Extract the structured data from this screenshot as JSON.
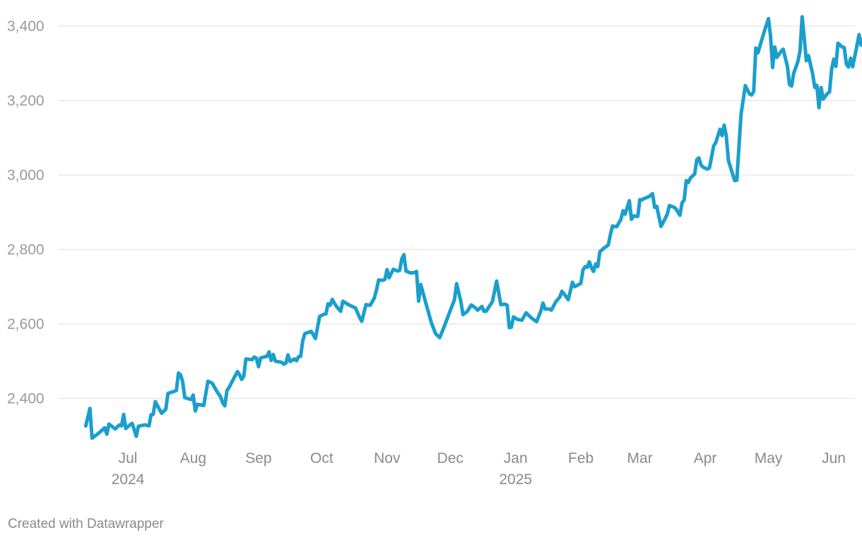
{
  "chart_data": {
    "type": "line",
    "title": "",
    "xlabel": "",
    "ylabel": "",
    "ylim": [
      2280,
      3440
    ],
    "yticks": [
      2400,
      2600,
      2800,
      3000,
      3200,
      3400
    ],
    "ytick_labels": [
      "2,400",
      "2,600",
      "2,800",
      "3,000",
      "3,200",
      "3,400"
    ],
    "xtick_dates": [
      "2024-07-01",
      "2024-08-01",
      "2024-09-01",
      "2024-10-01",
      "2024-11-01",
      "2024-12-01",
      "2025-01-01",
      "2025-02-01",
      "2025-03-01",
      "2025-04-01",
      "2025-05-01",
      "2025-06-01"
    ],
    "xtick_labels": [
      "Jul",
      "Aug",
      "Sep",
      "Oct",
      "Nov",
      "Dec",
      "Jan",
      "Feb",
      "Mar",
      "Apr",
      "May",
      "Jun"
    ],
    "year_labels": [
      {
        "date": "2024-07-01",
        "label": "2024"
      },
      {
        "date": "2025-01-01",
        "label": "2025"
      }
    ],
    "grid": true,
    "line_color": "#1a9fcd",
    "series": [
      {
        "values": [
          [
            "2024-06-11",
            2326
          ],
          [
            "2024-06-13",
            2373
          ],
          [
            "2024-06-14",
            2293
          ],
          [
            "2024-06-17",
            2306
          ],
          [
            "2024-06-20",
            2321
          ],
          [
            "2024-06-21",
            2304
          ],
          [
            "2024-06-22",
            2331
          ],
          [
            "2024-06-25",
            2318
          ],
          [
            "2024-06-27",
            2329
          ],
          [
            "2024-06-28",
            2326
          ],
          [
            "2024-06-29",
            2357
          ],
          [
            "2024-06-30",
            2319
          ],
          [
            "2024-07-02",
            2329
          ],
          [
            "2024-07-03",
            2333
          ],
          [
            "2024-07-05",
            2298
          ],
          [
            "2024-07-06",
            2325
          ],
          [
            "2024-07-09",
            2329
          ],
          [
            "2024-07-11",
            2326
          ],
          [
            "2024-07-12",
            2356
          ],
          [
            "2024-07-13",
            2357
          ],
          [
            "2024-07-14",
            2391
          ],
          [
            "2024-07-15",
            2381
          ],
          [
            "2024-07-17",
            2360
          ],
          [
            "2024-07-19",
            2371
          ],
          [
            "2024-07-20",
            2413
          ],
          [
            "2024-07-22",
            2417
          ],
          [
            "2024-07-24",
            2421
          ],
          [
            "2024-07-25",
            2468
          ],
          [
            "2024-07-26",
            2463
          ],
          [
            "2024-07-27",
            2445
          ],
          [
            "2024-07-28",
            2402
          ],
          [
            "2024-07-31",
            2397
          ],
          [
            "2024-08-01",
            2409
          ],
          [
            "2024-08-02",
            2366
          ],
          [
            "2024-08-03",
            2384
          ],
          [
            "2024-08-06",
            2381
          ],
          [
            "2024-08-08",
            2446
          ],
          [
            "2024-08-10",
            2441
          ],
          [
            "2024-08-12",
            2421
          ],
          [
            "2024-08-14",
            2404
          ],
          [
            "2024-08-15",
            2388
          ],
          [
            "2024-08-16",
            2380
          ],
          [
            "2024-08-17",
            2421
          ],
          [
            "2024-08-18",
            2429
          ],
          [
            "2024-08-20",
            2451
          ],
          [
            "2024-08-22",
            2472
          ],
          [
            "2024-08-23",
            2463
          ],
          [
            "2024-08-24",
            2451
          ],
          [
            "2024-08-25",
            2459
          ],
          [
            "2024-08-26",
            2506
          ],
          [
            "2024-08-29",
            2504
          ],
          [
            "2024-08-30",
            2511
          ],
          [
            "2024-08-31",
            2508
          ],
          [
            "2024-09-01",
            2485
          ],
          [
            "2024-09-02",
            2509
          ],
          [
            "2024-09-05",
            2513
          ],
          [
            "2024-09-06",
            2525
          ],
          [
            "2024-09-07",
            2502
          ],
          [
            "2024-09-08",
            2518
          ],
          [
            "2024-09-09",
            2500
          ],
          [
            "2024-09-12",
            2497
          ],
          [
            "2024-09-13",
            2492
          ],
          [
            "2024-09-14",
            2495
          ],
          [
            "2024-09-15",
            2517
          ],
          [
            "2024-09-16",
            2499
          ],
          [
            "2024-09-18",
            2506
          ],
          [
            "2024-09-19",
            2501
          ],
          [
            "2024-09-20",
            2512
          ],
          [
            "2024-09-21",
            2513
          ],
          [
            "2024-09-22",
            2555
          ],
          [
            "2024-09-23",
            2574
          ],
          [
            "2024-09-25",
            2578
          ],
          [
            "2024-09-26",
            2580
          ],
          [
            "2024-09-27",
            2571
          ],
          [
            "2024-09-28",
            2561
          ],
          [
            "2024-09-30",
            2620
          ],
          [
            "2024-10-02",
            2626
          ],
          [
            "2024-10-03",
            2627
          ],
          [
            "2024-10-04",
            2654
          ],
          [
            "2024-10-05",
            2650
          ],
          [
            "2024-10-06",
            2666
          ],
          [
            "2024-10-07",
            2656
          ],
          [
            "2024-10-08",
            2647
          ],
          [
            "2024-10-10",
            2634
          ],
          [
            "2024-10-11",
            2661
          ],
          [
            "2024-10-13",
            2654
          ],
          [
            "2024-10-15",
            2648
          ],
          [
            "2024-10-17",
            2643
          ],
          [
            "2024-10-19",
            2617
          ],
          [
            "2024-10-20",
            2607
          ],
          [
            "2024-10-22",
            2652
          ],
          [
            "2024-10-24",
            2650
          ],
          [
            "2024-10-25",
            2660
          ],
          [
            "2024-10-26",
            2670
          ],
          [
            "2024-10-27",
            2692
          ],
          [
            "2024-10-28",
            2718
          ],
          [
            "2024-10-30",
            2717
          ],
          [
            "2024-10-31",
            2720
          ],
          [
            "2024-11-01",
            2746
          ],
          [
            "2024-11-02",
            2724
          ],
          [
            "2024-11-03",
            2736
          ],
          [
            "2024-11-04",
            2747
          ],
          [
            "2024-11-06",
            2742
          ],
          [
            "2024-11-07",
            2744
          ],
          [
            "2024-11-08",
            2775
          ],
          [
            "2024-11-09",
            2786
          ],
          [
            "2024-11-10",
            2742
          ],
          [
            "2024-11-12",
            2737
          ],
          [
            "2024-11-14",
            2738
          ],
          [
            "2024-11-15",
            2741
          ],
          [
            "2024-11-16",
            2661
          ],
          [
            "2024-11-17",
            2706
          ],
          [
            "2024-11-19",
            2664
          ],
          [
            "2024-11-22",
            2604
          ],
          [
            "2024-11-24",
            2574
          ],
          [
            "2024-11-26",
            2563
          ],
          [
            "2024-11-28",
            2591
          ],
          [
            "2024-12-01",
            2636
          ],
          [
            "2024-12-03",
            2665
          ],
          [
            "2024-12-04",
            2708
          ],
          [
            "2024-12-06",
            2661
          ],
          [
            "2024-12-07",
            2625
          ],
          [
            "2024-12-09",
            2633
          ],
          [
            "2024-12-11",
            2651
          ],
          [
            "2024-12-13",
            2643
          ],
          [
            "2024-12-14",
            2637
          ],
          [
            "2024-12-16",
            2647
          ],
          [
            "2024-12-17",
            2634
          ],
          [
            "2024-12-18",
            2634
          ],
          [
            "2024-12-21",
            2660
          ],
          [
            "2024-12-23",
            2715
          ],
          [
            "2024-12-25",
            2652
          ],
          [
            "2024-12-27",
            2653
          ],
          [
            "2024-12-28",
            2650
          ],
          [
            "2024-12-29",
            2590
          ],
          [
            "2024-12-30",
            2591
          ],
          [
            "2024-12-31",
            2619
          ],
          [
            "2025-01-02",
            2612
          ],
          [
            "2025-01-04",
            2610
          ],
          [
            "2025-01-06",
            2630
          ],
          [
            "2025-01-08",
            2619
          ],
          [
            "2025-01-09",
            2614
          ],
          [
            "2025-01-11",
            2606
          ],
          [
            "2025-01-13",
            2635
          ],
          [
            "2025-01-14",
            2656
          ],
          [
            "2025-01-15",
            2640
          ],
          [
            "2025-01-17",
            2640
          ],
          [
            "2025-01-18",
            2637
          ],
          [
            "2025-01-20",
            2659
          ],
          [
            "2025-01-22",
            2672
          ],
          [
            "2025-01-23",
            2688
          ],
          [
            "2025-01-25",
            2673
          ],
          [
            "2025-01-26",
            2665
          ],
          [
            "2025-01-28",
            2712
          ],
          [
            "2025-01-29",
            2700
          ],
          [
            "2025-02-01",
            2709
          ],
          [
            "2025-02-02",
            2745
          ],
          [
            "2025-02-03",
            2754
          ],
          [
            "2025-02-04",
            2752
          ],
          [
            "2025-02-05",
            2767
          ],
          [
            "2025-02-06",
            2751
          ],
          [
            "2025-02-07",
            2741
          ],
          [
            "2025-02-08",
            2761
          ],
          [
            "2025-02-09",
            2754
          ],
          [
            "2025-02-10",
            2794
          ],
          [
            "2025-02-12",
            2804
          ],
          [
            "2025-02-14",
            2812
          ],
          [
            "2025-02-15",
            2840
          ],
          [
            "2025-02-16",
            2863
          ],
          [
            "2025-02-18",
            2861
          ],
          [
            "2025-02-20",
            2881
          ],
          [
            "2025-02-21",
            2904
          ],
          [
            "2025-02-22",
            2895
          ],
          [
            "2025-02-24",
            2931
          ],
          [
            "2025-02-25",
            2881
          ],
          [
            "2025-02-26",
            2890
          ],
          [
            "2025-02-28",
            2889
          ],
          [
            "2025-03-01",
            2934
          ],
          [
            "2025-03-02",
            2933
          ],
          [
            "2025-03-03",
            2937
          ],
          [
            "2025-03-05",
            2941
          ],
          [
            "2025-03-06",
            2945
          ],
          [
            "2025-03-07",
            2950
          ],
          [
            "2025-03-08",
            2913
          ],
          [
            "2025-03-09",
            2916
          ],
          [
            "2025-03-11",
            2862
          ],
          [
            "2025-03-13",
            2883
          ],
          [
            "2025-03-14",
            2895
          ],
          [
            "2025-03-15",
            2918
          ],
          [
            "2025-03-17",
            2914
          ],
          [
            "2025-03-18",
            2910
          ],
          [
            "2025-03-20",
            2892
          ],
          [
            "2025-03-21",
            2925
          ],
          [
            "2025-03-22",
            2933
          ],
          [
            "2025-03-23",
            2985
          ],
          [
            "2025-03-24",
            2980
          ],
          [
            "2025-03-25",
            2992
          ],
          [
            "2025-03-27",
            3003
          ],
          [
            "2025-03-28",
            3041
          ],
          [
            "2025-03-29",
            3046
          ],
          [
            "2025-03-30",
            3027
          ],
          [
            "2025-03-31",
            3021
          ],
          [
            "2025-04-02",
            3016
          ],
          [
            "2025-04-03",
            3019
          ],
          [
            "2025-04-05",
            3078
          ],
          [
            "2025-04-06",
            3087
          ],
          [
            "2025-04-08",
            3123
          ],
          [
            "2025-04-09",
            3106
          ],
          [
            "2025-04-10",
            3134
          ],
          [
            "2025-04-11",
            3105
          ],
          [
            "2025-04-12",
            3039
          ],
          [
            "2025-04-15",
            2985
          ],
          [
            "2025-04-16",
            2986
          ],
          [
            "2025-04-18",
            3163
          ],
          [
            "2025-04-20",
            3240
          ],
          [
            "2025-04-22",
            3218
          ],
          [
            "2025-04-23",
            3215
          ],
          [
            "2025-04-24",
            3224
          ],
          [
            "2025-04-25",
            3341
          ],
          [
            "2025-04-26",
            3328
          ],
          [
            "2025-04-29",
            3385
          ],
          [
            "2025-05-01",
            3420
          ],
          [
            "2025-05-02",
            3374
          ],
          [
            "2025-05-03",
            3289
          ],
          [
            "2025-05-04",
            3344
          ],
          [
            "2025-05-05",
            3316
          ],
          [
            "2025-05-07",
            3332
          ],
          [
            "2025-05-08",
            3338
          ],
          [
            "2025-05-10",
            3292
          ],
          [
            "2025-05-11",
            3243
          ],
          [
            "2025-05-12",
            3239
          ],
          [
            "2025-05-13",
            3273
          ],
          [
            "2025-05-15",
            3305
          ],
          [
            "2025-05-16",
            3333
          ],
          [
            "2025-05-17",
            3425
          ],
          [
            "2025-05-18",
            3368
          ],
          [
            "2025-05-19",
            3307
          ],
          [
            "2025-05-20",
            3321
          ],
          [
            "2025-05-22",
            3271
          ],
          [
            "2025-05-23",
            3235
          ],
          [
            "2025-05-24",
            3241
          ],
          [
            "2025-05-25",
            3181
          ],
          [
            "2025-05-26",
            3235
          ],
          [
            "2025-05-27",
            3204
          ],
          [
            "2025-05-29",
            3219
          ],
          [
            "2025-05-30",
            3223
          ],
          [
            "2025-05-31",
            3284
          ],
          [
            "2025-06-01",
            3311
          ],
          [
            "2025-06-02",
            3292
          ],
          [
            "2025-06-03",
            3354
          ],
          [
            "2025-06-05",
            3344
          ],
          [
            "2025-06-06",
            3342
          ],
          [
            "2025-06-07",
            3298
          ],
          [
            "2025-06-08",
            3290
          ],
          [
            "2025-06-09",
            3314
          ],
          [
            "2025-06-10",
            3291
          ],
          [
            "2025-06-12",
            3347
          ],
          [
            "2025-06-13",
            3377
          ],
          [
            "2025-06-14",
            3349
          ],
          [
            "2025-06-15",
            3364
          ]
        ]
      }
    ]
  },
  "footer": {
    "credit": "Created with Datawrapper"
  }
}
